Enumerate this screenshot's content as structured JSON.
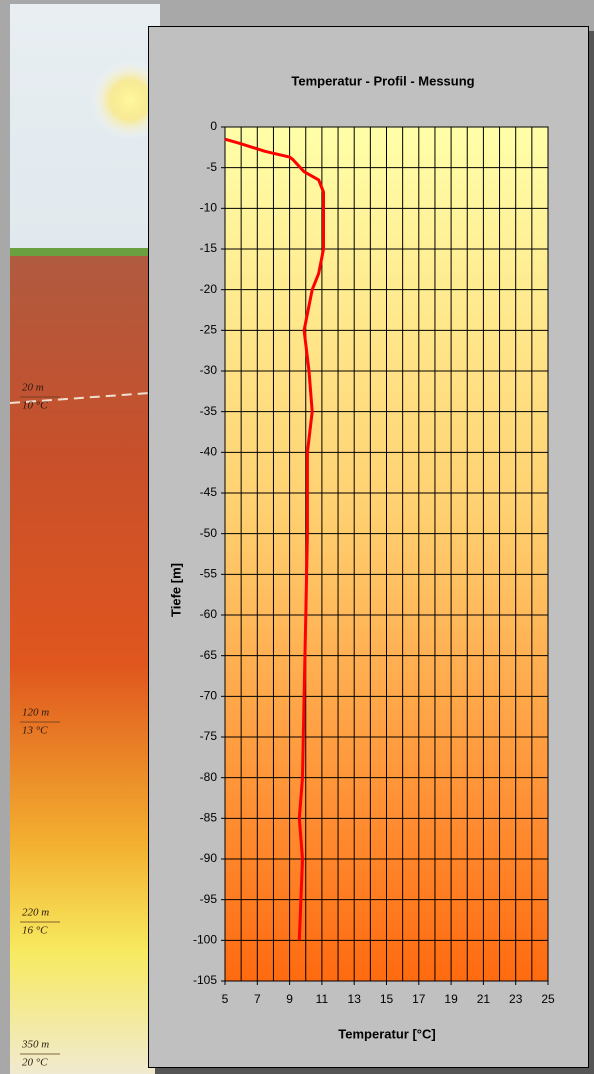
{
  "illustration": {
    "labels": [
      {
        "depth": "20 m",
        "temp": "10 °C"
      },
      {
        "depth": "120 m",
        "temp": "13 °C"
      },
      {
        "depth": "220 m",
        "temp": "16 °C"
      },
      {
        "depth": "350 m",
        "temp": "20 °C"
      }
    ]
  },
  "chart_data": {
    "type": "line",
    "title": "Temperatur - Profil - Messung",
    "x_label": "Temperatur [°C]",
    "y_label": "Tiefe [m]",
    "x": [
      5.0,
      5.9,
      7.5,
      9.0,
      9.2,
      9.9,
      10.8,
      11.1,
      11.1,
      11.1,
      10.8,
      10.4,
      9.9,
      10.2,
      10.4,
      10.1,
      10.1,
      10.0,
      9.9,
      9.8,
      9.6,
      9.8,
      9.7,
      9.6
    ],
    "values": [
      -1.5,
      -2,
      -3,
      -3.7,
      -4,
      -5.5,
      -6.5,
      -8,
      -10,
      -15,
      -18,
      -20,
      -25,
      -30,
      -35,
      -40,
      -50,
      -60,
      -70,
      -80,
      -85,
      -90,
      -95,
      -100
    ],
    "color": "#ff0000",
    "xlim": [
      5,
      25
    ],
    "xticks": [
      5,
      7,
      9,
      11,
      13,
      15,
      17,
      19,
      21,
      23,
      25
    ],
    "xgrid": [
      5,
      6,
      7,
      8,
      9,
      10,
      11,
      12,
      13,
      14,
      15,
      16,
      17,
      18,
      19,
      20,
      21,
      22,
      23,
      24,
      25
    ],
    "ylim": [
      -105,
      0
    ],
    "yticks": [
      0,
      -5,
      -10,
      -15,
      -20,
      -25,
      -30,
      -35,
      -40,
      -45,
      -50,
      -55,
      -60,
      -65,
      -70,
      -75,
      -80,
      -85,
      -90,
      -95,
      -100,
      -105
    ],
    "grid": true
  }
}
